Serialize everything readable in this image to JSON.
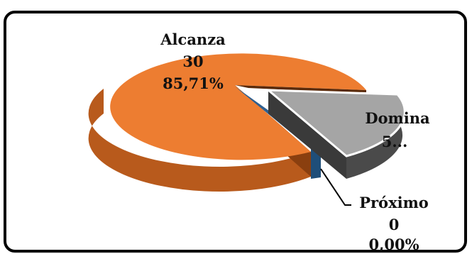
{
  "chart_data": {
    "type": "pie",
    "style": "3d-exploded",
    "slices": [
      {
        "name": "Alcanza",
        "value": 30,
        "percent": "85,71%",
        "color": "#ED7D31",
        "side_color": "#B85A1C"
      },
      {
        "name": "Domina",
        "value": 5,
        "value_label": "5...",
        "color": "#A5A5A5",
        "side_color": "#4A4A4A",
        "exploded": true
      },
      {
        "name": "Próximo",
        "value": 0,
        "percent": "0,00%",
        "color": "#2E5F8F",
        "side_color": "#1F4E79"
      }
    ],
    "labels": {
      "alcanza": {
        "name": "Alcanza",
        "value": "30",
        "percent": "85,71%"
      },
      "domina": {
        "name": "Domina",
        "value": "5..."
      },
      "proximo": {
        "name": "Próximo",
        "value": "0",
        "percent": "0,00%"
      }
    },
    "border_color": "#000000"
  }
}
